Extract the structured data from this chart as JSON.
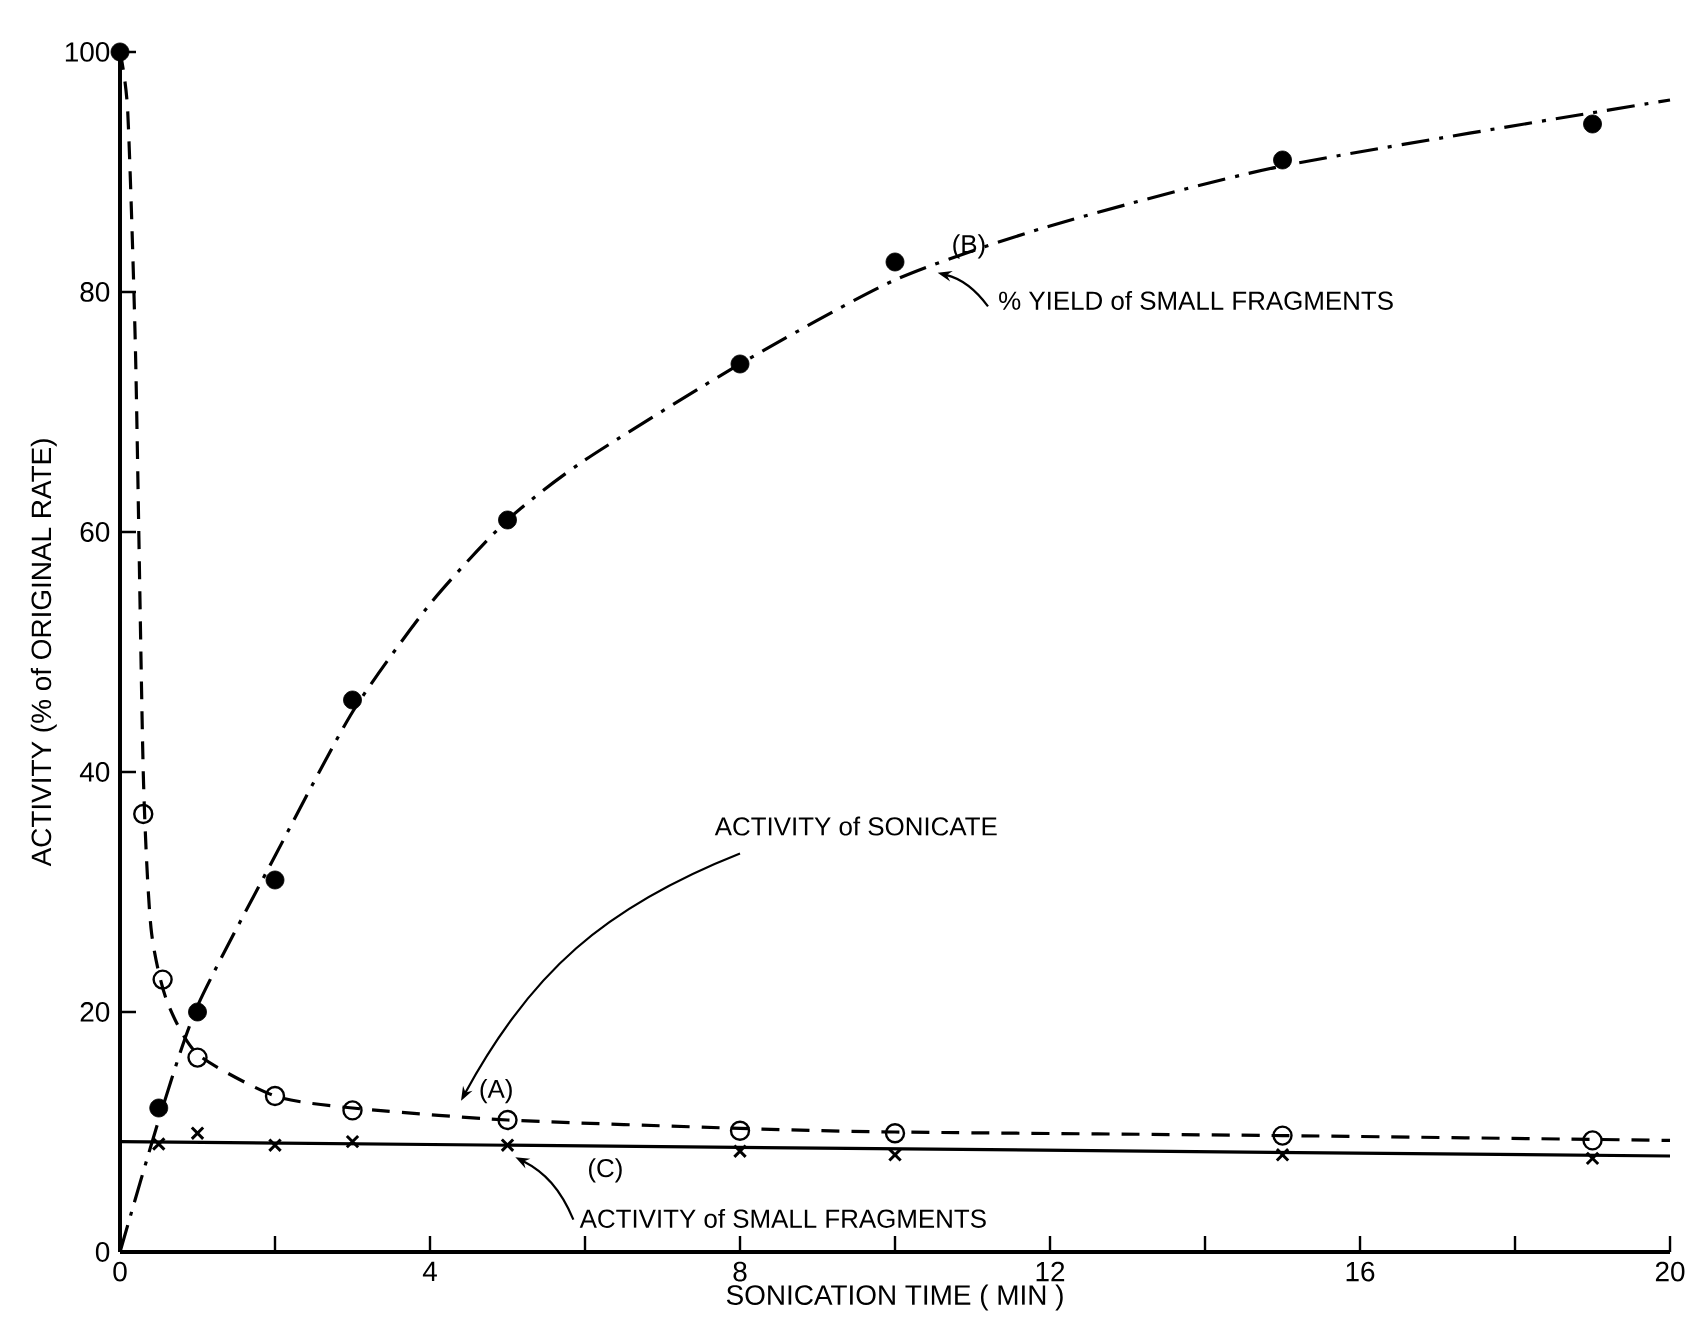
{
  "chart_data": {
    "type": "scatter",
    "xlabel": "SONICATION TIME ( MIN )",
    "ylabel": "ACTIVITY  (% of ORIGINAL RATE)",
    "xlim": [
      0,
      20
    ],
    "ylim": [
      0,
      100
    ],
    "xticks": [
      0,
      {
        "value": 2,
        "label": null
      },
      4,
      {
        "value": 6,
        "label": null
      },
      8,
      {
        "value": 10,
        "label": null
      },
      12,
      {
        "value": 14,
        "label": null
      },
      16,
      {
        "value": 18,
        "label": null
      },
      20
    ],
    "yticks": [
      0,
      20,
      40,
      60,
      80,
      100
    ],
    "grid": false,
    "series": [
      {
        "type": "scatter",
        "marker": "circle",
        "color": "#000000",
        "x": [
          0.5,
          1,
          2,
          3,
          5,
          8,
          10,
          15,
          19
        ],
        "values": [
          12,
          20,
          31,
          46,
          61,
          74,
          82.5,
          91,
          94
        ]
      },
      {
        "type": "line",
        "marker": "none",
        "line_style": "dashdot",
        "color": "#000000",
        "x": [
          0,
          0.5,
          1,
          2,
          3,
          4,
          5,
          6,
          8,
          10,
          12,
          15,
          20
        ],
        "values": [
          0,
          11,
          20.5,
          33,
          45,
          54,
          61,
          66,
          74,
          81,
          85.5,
          90.5,
          96
        ]
      },
      {
        "type": "scatter",
        "marker": "open_circle",
        "color": "#000000",
        "x": [
          0.3,
          0.55,
          1,
          2,
          3,
          5,
          8,
          10,
          15,
          19
        ],
        "values": [
          36.5,
          22.7,
          16.2,
          13,
          11.8,
          11,
          10.1,
          9.9,
          9.7,
          9.3
        ]
      },
      {
        "type": "line",
        "marker": "none",
        "line_style": "dashed",
        "color": "#000000",
        "x": [
          0,
          0.1,
          0.2,
          0.3,
          0.4,
          0.6,
          1,
          2,
          3,
          5,
          8,
          10,
          15,
          20
        ],
        "values": [
          100,
          95,
          75,
          40,
          27,
          21,
          16.5,
          13,
          12,
          11,
          10.3,
          10,
          9.7,
          9.3
        ]
      },
      {
        "type": "scatter",
        "marker": "circle",
        "color": "#000000",
        "x": [
          0
        ],
        "values": [
          100
        ]
      },
      {
        "type": "scatter",
        "marker": "cross",
        "color": "#000000",
        "x": [
          0.5,
          1,
          2,
          3,
          5,
          8,
          10,
          15,
          19
        ],
        "values": [
          9,
          9.9,
          8.9,
          9.2,
          8.9,
          8.4,
          8.1,
          8.1,
          7.8
        ]
      },
      {
        "type": "line",
        "marker": "none",
        "line_style": "solid",
        "color": "#000000",
        "x": [
          0,
          20
        ],
        "values": [
          9.2,
          8
        ]
      }
    ],
    "annotations": [
      "ACTIVITY of SONICATE",
      "(A)",
      "(B)",
      "% YIELD of SMALL FRAGMENTS",
      "(C)",
      "ACTIVITY of SMALL FRAGMENTS"
    ]
  }
}
